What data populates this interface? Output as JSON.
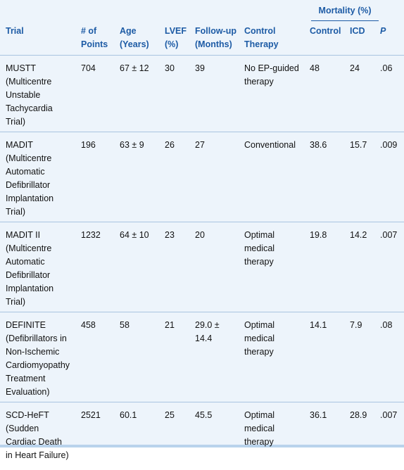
{
  "header": {
    "group": "Mortality (%)",
    "columns": [
      [
        "Trial"
      ],
      [
        "# of",
        "Points"
      ],
      [
        "Age",
        "(Years)"
      ],
      [
        "LVEF",
        "(%)"
      ],
      [
        "Follow-up",
        "(Months)"
      ],
      [
        "Control",
        "Therapy"
      ],
      [
        "Control"
      ],
      [
        "ICD"
      ],
      [
        "P"
      ]
    ]
  },
  "table": {
    "rows": [
      [
        [
          "MUSTT",
          "(Multicentre",
          "Unstable",
          "Tachycardia",
          "Trial)"
        ],
        [
          "704"
        ],
        [
          "67 ± 12"
        ],
        [
          "30"
        ],
        [
          "39"
        ],
        [
          "No EP-guided",
          "therapy"
        ],
        [
          "48"
        ],
        [
          "24"
        ],
        [
          ".06"
        ]
      ],
      [
        [
          "MADIT",
          "(Multicentre",
          "Automatic",
          "Defibrillator",
          "Implantation",
          "Trial)"
        ],
        [
          "196"
        ],
        [
          "63 ± 9"
        ],
        [
          "26"
        ],
        [
          "27"
        ],
        [
          "Conventional"
        ],
        [
          "38.6"
        ],
        [
          "15.7"
        ],
        [
          ".009"
        ]
      ],
      [
        [
          "MADIT II",
          "(Multicentre",
          "Automatic",
          "Defibrillator",
          "Implantation",
          "Trial)"
        ],
        [
          "1232"
        ],
        [
          "64 ± 10"
        ],
        [
          "23"
        ],
        [
          "20"
        ],
        [
          "Optimal",
          "medical",
          "therapy"
        ],
        [
          "19.8"
        ],
        [
          "14.2"
        ],
        [
          ".007"
        ]
      ],
      [
        [
          "DEFINITE",
          "(Defibrillators in",
          "Non-Ischemic",
          "Cardiomyopathy",
          "Treatment",
          "Evaluation)"
        ],
        [
          "458"
        ],
        [
          "58"
        ],
        [
          "21"
        ],
        [
          "29.0 ±",
          "14.4"
        ],
        [
          "Optimal",
          "medical",
          "therapy"
        ],
        [
          "14.1"
        ],
        [
          "7.9"
        ],
        [
          ".08"
        ]
      ],
      [
        [
          "SCD-HeFT",
          "(Sudden",
          "Cardiac Death",
          "in Heart Failure)"
        ],
        [
          "2521"
        ],
        [
          "60.1"
        ],
        [
          "25"
        ],
        [
          "45.5"
        ],
        [
          "Optimal",
          "medical",
          "therapy"
        ],
        [
          "36.1"
        ],
        [
          "28.9"
        ],
        [
          ".007"
        ]
      ]
    ]
  }
}
